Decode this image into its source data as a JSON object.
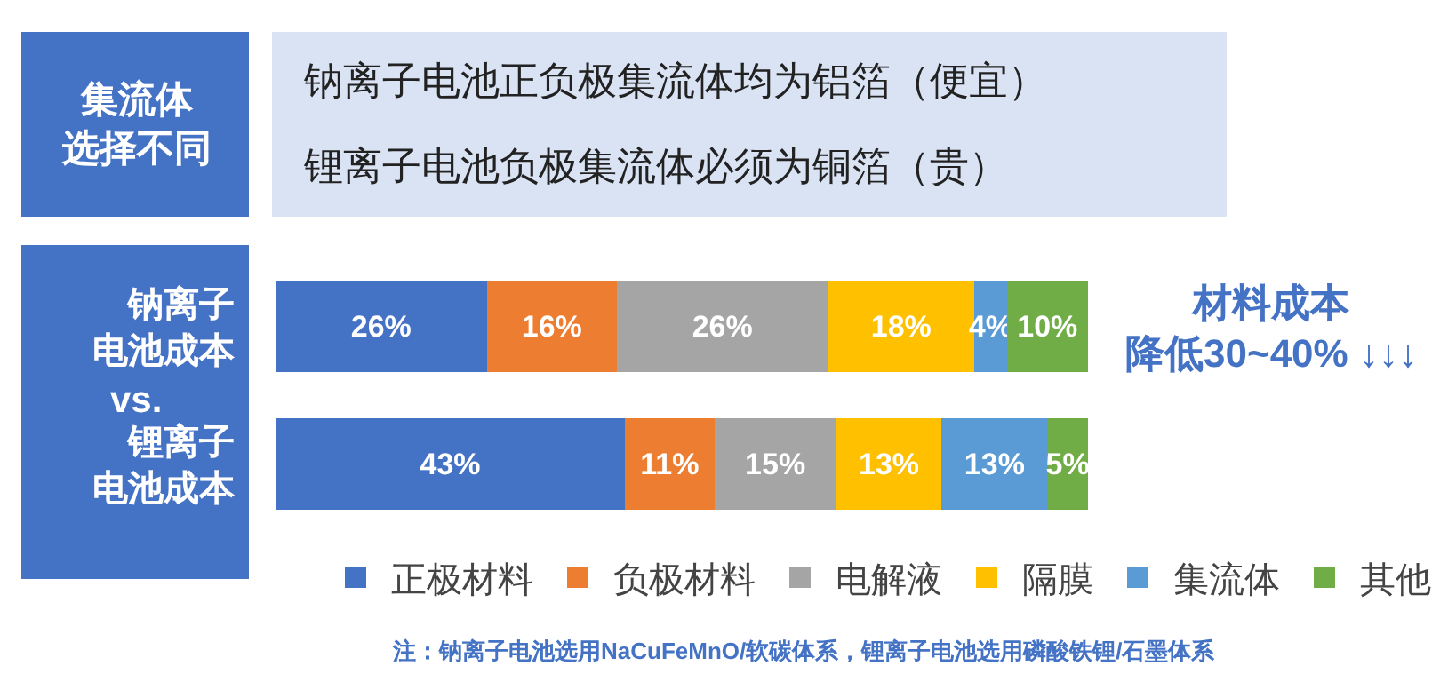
{
  "chart_data": {
    "type": "bar",
    "orientation": "horizontal",
    "stacked": true,
    "xlim": [
      0,
      100
    ],
    "tick_labels": false,
    "data_labels": true,
    "legend": "bottom",
    "categories": [
      "钠离子电池成本",
      "锂离子电池成本"
    ],
    "series": [
      {
        "name": "正极材料",
        "color": "#4472c4",
        "values": [
          26,
          43
        ],
        "value_labels": [
          "26%",
          "43%"
        ]
      },
      {
        "name": "负极材料",
        "color": "#ed7d31",
        "values": [
          16,
          11
        ],
        "value_labels": [
          "16%",
          "11%"
        ]
      },
      {
        "name": "电解液",
        "color": "#a5a5a5",
        "values": [
          26,
          15
        ],
        "value_labels": [
          "26%",
          "15%"
        ]
      },
      {
        "name": "隔膜",
        "color": "#ffc000",
        "values": [
          18,
          13
        ],
        "value_labels": [
          "18%",
          "13%"
        ]
      },
      {
        "name": "集流体",
        "color": "#5b9bd5",
        "values": [
          4,
          13
        ],
        "value_labels": [
          "4%",
          "13%"
        ]
      },
      {
        "name": "其他",
        "color": "#70ad47",
        "values": [
          10,
          5
        ],
        "value_labels": [
          "10%",
          "5%"
        ]
      }
    ],
    "annotations": [
      "集流体选择不同",
      "钠离子电池正负极集流体均为铝箔（便宜）",
      "锂离子电池负极集流体必须为铜箔（贵）",
      "vs.",
      "材料成本降低30~40% ↓↓↓",
      "注：钠离子电池选用NaCuFeMnO/软碳体系，锂离子电池选用磷酸铁锂/石墨体系"
    ]
  }
}
